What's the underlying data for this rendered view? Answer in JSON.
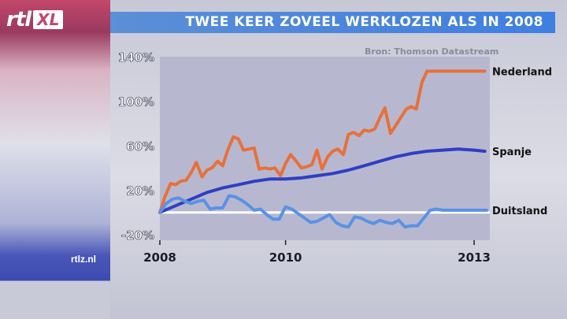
{
  "header": {
    "logo_text": "rtl",
    "logo_badge": "XL",
    "title": "TWEE KEER ZOVEEL WERKLOZEN ALS IN 2008",
    "source": "Bron: Thomson Datastream",
    "site": "rtlz.nl"
  },
  "colors": {
    "nederland": "#e8703a",
    "spanje": "#2f3fc2",
    "duitsland": "#5a92e4",
    "plot_bg": "#b7b8d0",
    "zero_line": "#ffffff"
  },
  "chart_data": {
    "type": "line",
    "title": "TWEE KEER ZOVEEL WERKLOZEN ALS IN 2008",
    "xlabel": "",
    "ylabel": "",
    "xlim": [
      2008.0,
      2013.25
    ],
    "ylim": [
      -25,
      140
    ],
    "x_ticks": [
      {
        "value": 2008,
        "label": "2008"
      },
      {
        "value": 2010,
        "label": "2010"
      },
      {
        "value": 2013,
        "label": "2013"
      }
    ],
    "y_ticks": [
      {
        "value": 140,
        "label": "140%"
      },
      {
        "value": 100,
        "label": "100%"
      },
      {
        "value": 60,
        "label": "60%"
      },
      {
        "value": 20,
        "label": "20%"
      },
      {
        "value": -20,
        "label": "-20%"
      }
    ],
    "grid": false,
    "legend": "inline-right",
    "series": [
      {
        "name": "Nederland",
        "color_key": "nederland",
        "x": [
          2008.0,
          2008.08,
          2008.17,
          2008.25,
          2008.33,
          2008.42,
          2008.5,
          2008.58,
          2008.67,
          2008.75,
          2008.83,
          2008.92,
          2009.0,
          2009.08,
          2009.17,
          2009.25,
          2009.33,
          2009.42,
          2009.5,
          2009.58,
          2009.67,
          2009.75,
          2009.83,
          2009.92,
          2010.0,
          2010.08,
          2010.17,
          2010.25,
          2010.33,
          2010.42,
          2010.5,
          2010.58,
          2010.67,
          2010.75,
          2010.83,
          2010.92,
          2011.0,
          2011.08,
          2011.17,
          2011.25,
          2011.33,
          2011.42,
          2011.5,
          2011.58,
          2011.67,
          2011.75,
          2011.83,
          2011.92,
          2012.0,
          2012.08,
          2012.17,
          2012.25,
          2012.33,
          2012.42,
          2012.5,
          2012.58,
          2012.67,
          2012.75,
          2012.83,
          2012.92,
          2013.0,
          2013.08,
          2013.17
        ],
        "y": [
          0,
          14,
          26,
          25,
          28,
          29,
          36,
          45,
          32,
          38,
          40,
          46,
          42,
          56,
          68,
          66,
          56,
          57,
          58,
          39,
          40,
          39,
          40,
          33,
          44,
          52,
          46,
          40,
          41,
          43,
          56,
          39,
          50,
          55,
          57,
          52,
          70,
          72,
          69,
          74,
          73,
          75,
          85,
          94,
          71,
          78,
          85,
          93,
          95,
          93,
          117,
          127,
          127,
          127,
          127,
          127,
          127,
          127,
          127,
          127,
          127,
          127,
          127
        ]
      },
      {
        "name": "Spanje",
        "color_key": "spanje",
        "x": [
          2008.0,
          2008.25,
          2008.5,
          2008.75,
          2009.0,
          2009.25,
          2009.5,
          2009.75,
          2010.0,
          2010.25,
          2010.5,
          2010.75,
          2011.0,
          2011.25,
          2011.5,
          2011.75,
          2012.0,
          2012.25,
          2012.5,
          2012.75,
          2013.0,
          2013.17
        ],
        "y": [
          0,
          6,
          12,
          18,
          22,
          25,
          28,
          30,
          30,
          31,
          33,
          35,
          38,
          42,
          46,
          50,
          53,
          55,
          56,
          57,
          56,
          55
        ]
      },
      {
        "name": "Duitsland",
        "color_key": "duitsland",
        "x": [
          2008.0,
          2008.1,
          2008.2,
          2008.3,
          2008.4,
          2008.5,
          2008.6,
          2008.7,
          2008.8,
          2008.9,
          2009.0,
          2009.1,
          2009.2,
          2009.3,
          2009.4,
          2009.5,
          2009.6,
          2009.7,
          2009.8,
          2009.9,
          2010.0,
          2010.1,
          2010.2,
          2010.3,
          2010.4,
          2010.5,
          2010.6,
          2010.7,
          2010.8,
          2010.9,
          2011.0,
          2011.1,
          2011.2,
          2011.3,
          2011.4,
          2011.5,
          2011.6,
          2011.7,
          2011.8,
          2011.9,
          2012.0,
          2012.1,
          2012.2,
          2012.3,
          2012.4,
          2012.5,
          2012.6,
          2012.7,
          2012.8,
          2012.9,
          2013.0,
          2013.1,
          2013.2
        ],
        "y": [
          0,
          8,
          12,
          13,
          10,
          8,
          10,
          11,
          3,
          4,
          4,
          15,
          14,
          11,
          7,
          2,
          3,
          -2,
          -6,
          -6,
          5,
          3,
          -1,
          -5,
          -9,
          -8,
          -5,
          -2,
          -9,
          -12,
          -13,
          -4,
          -5,
          -8,
          -10,
          -7,
          -9,
          -10,
          -7,
          -13,
          -12,
          -12,
          -5,
          2,
          3,
          2,
          2,
          2,
          2,
          2,
          2,
          2,
          2
        ]
      }
    ]
  }
}
